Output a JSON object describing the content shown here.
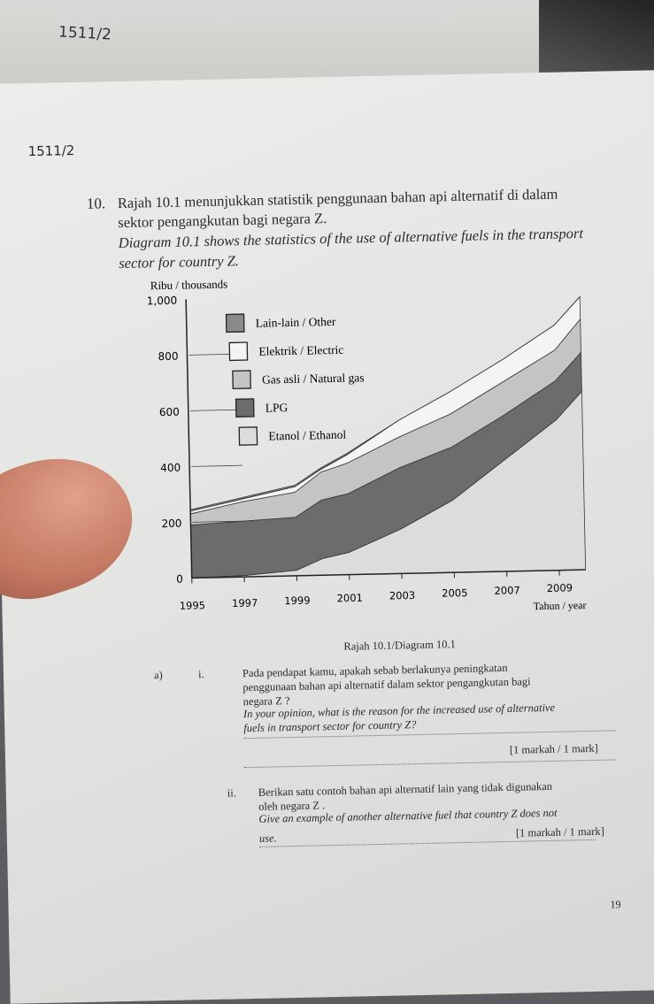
{
  "back_sheet_code": "1511/2",
  "paper_code": "1511/2",
  "question": {
    "number": "10.",
    "malay_line1": "Rajah 10.1 menunjukkan    statistik penggunaan bahan api alternatif di dalam",
    "malay_line2": "sektor pengangkutan bagi negara Z.",
    "english_line1": "Diagram 10.1 shows the statistics of the use of alternative fuels in the transport",
    "english_line2": "sector for country Z."
  },
  "chart_data": {
    "type": "area",
    "stacked": true,
    "ylabel": "Ribu / thousands",
    "xlabel": "Tahun / year",
    "ylim": [
      0,
      1000
    ],
    "xlim": [
      1995,
      2010
    ],
    "y_ticks": [
      "0",
      "200",
      "400",
      "600",
      "800",
      "1,000"
    ],
    "x_ticks": [
      "1995",
      "1997",
      "1999",
      "2001",
      "2003",
      "2005",
      "2007",
      "2009"
    ],
    "x": [
      1995,
      1997,
      1999,
      2000,
      2001,
      2003,
      2005,
      2007,
      2009,
      2010
    ],
    "series": [
      {
        "name": "Etanol / Ethanol",
        "color": "#dcdcda",
        "values": [
          0,
          5,
          20,
          60,
          80,
          160,
          260,
          400,
          540,
          640
        ]
      },
      {
        "name": "LPG",
        "color": "#6c6c6c",
        "values": [
          190,
          195,
          190,
          210,
          210,
          220,
          190,
          160,
          140,
          140
        ]
      },
      {
        "name": "Gas asli / Natural gas",
        "color": "#c4c4c2",
        "values": [
          40,
          70,
          90,
          100,
          110,
          110,
          120,
          120,
          110,
          120
        ]
      },
      {
        "name": "Elektrik / Electric",
        "color": "#f4f4f2",
        "values": [
          10,
          10,
          20,
          10,
          30,
          60,
          80,
          80,
          90,
          80
        ]
      },
      {
        "name": "Lain-lain / Other",
        "color": "#8a8a8a",
        "values": [
          5,
          5,
          5,
          5,
          5,
          0,
          0,
          0,
          0,
          0
        ]
      }
    ],
    "legend_order": [
      "Lain-lain / Other",
      "Elektrik / Electric",
      "Gas asli / Natural gas",
      "LPG",
      "Etanol / Ethanol"
    ],
    "legend_placement": "top-left",
    "caption": "Rajah 10.1/Diagram 10.1"
  },
  "part_a": {
    "label": "a)",
    "i": {
      "label": "i.",
      "malay_line1": "Pada pendapat kamu, apakah sebab berlakunya peningkatan",
      "malay_line2": "penggunaan bahan api alternatif dalam sektor pengangkutan bagi",
      "malay_line3": "negara Z ?",
      "english_line1": "In your opinion, what is the reason for the increased use of alternative",
      "english_line2": "fuels in transport sector for country Z?",
      "marks": "[1 markah / 1 mark]"
    },
    "ii": {
      "label": "ii.",
      "malay_line1": "Berikan satu contoh bahan api alternatif lain yang tidak digunakan",
      "malay_line2": "oleh negara Z .",
      "english_line1": "Give an example of another alternative fuel that country Z does not",
      "english_line2": "use.",
      "marks": "[1 markah / 1 mark]"
    }
  },
  "page_number": "19"
}
